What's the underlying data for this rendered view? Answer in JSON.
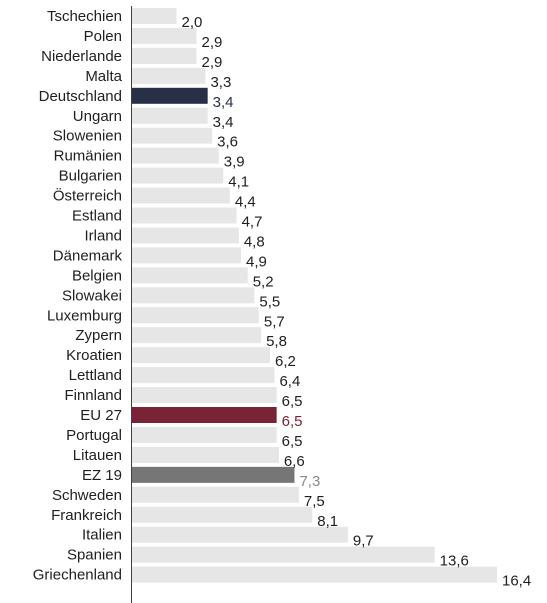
{
  "chart_data": {
    "type": "bar",
    "orientation": "horizontal",
    "categories": [
      "Tschechien",
      "Polen",
      "Niederlande",
      "Malta",
      "Deutschland",
      "Ungarn",
      "Slowenien",
      "Rumänien",
      "Bulgarien",
      "Österreich",
      "Estland",
      "Irland",
      "Dänemark",
      "Belgien",
      "Slowakei",
      "Luxemburg",
      "Zypern",
      "Kroatien",
      "Lettland",
      "Finnland",
      "EU 27",
      "Portugal",
      "Litauen",
      "EZ 19",
      "Schweden",
      "Frankreich",
      "Italien",
      "Spanien",
      "Griechenland"
    ],
    "values": [
      2.0,
      2.9,
      2.9,
      3.3,
      3.4,
      3.4,
      3.6,
      3.9,
      4.1,
      4.4,
      4.7,
      4.8,
      4.9,
      5.2,
      5.5,
      5.7,
      5.8,
      6.2,
      6.4,
      6.5,
      6.5,
      6.5,
      6.6,
      7.3,
      7.5,
      8.1,
      9.7,
      13.6,
      16.4
    ],
    "value_labels": [
      "2,0",
      "2,9",
      "2,9",
      "3,3",
      "3,4",
      "3,4",
      "3,6",
      "3,9",
      "4,1",
      "4,4",
      "4,7",
      "4,8",
      "4,9",
      "5,2",
      "5,5",
      "5,7",
      "5,8",
      "6,2",
      "6,4",
      "6,5",
      "6,5",
      "6,5",
      "6,6",
      "7,3",
      "7,5",
      "8,1",
      "9,7",
      "13,6",
      "16,4"
    ],
    "title": "",
    "xlabel": "",
    "ylabel": "",
    "xlim": [
      0,
      16.4
    ],
    "grid": false,
    "legend": "none",
    "colors": {
      "default_bar": "#e6e6e6",
      "default_label": "#1f1f1f",
      "axis": "#404040",
      "highlights": {
        "Deutschland": {
          "bar": "#283047",
          "label": "#283047"
        },
        "EU 27": {
          "bar": "#7a2337",
          "label": "#7a2337"
        },
        "EZ 19": {
          "bar": "#767676",
          "label": "#8a8a8a"
        }
      }
    }
  }
}
